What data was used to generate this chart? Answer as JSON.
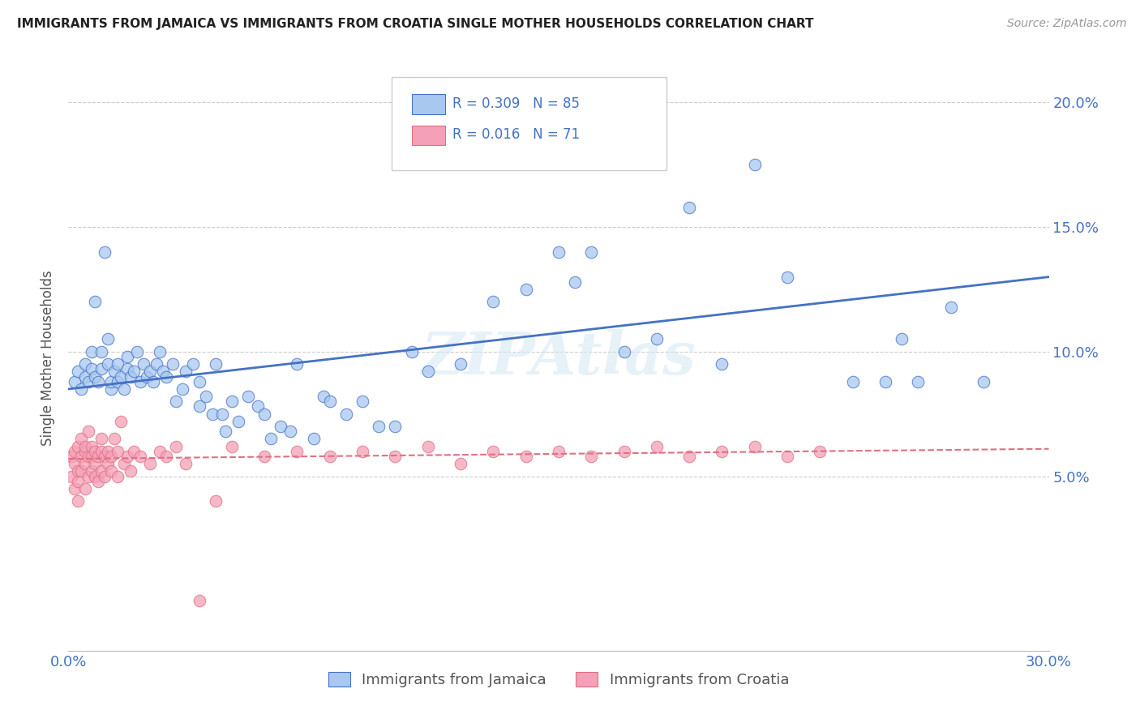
{
  "title": "IMMIGRANTS FROM JAMAICA VS IMMIGRANTS FROM CROATIA SINGLE MOTHER HOUSEHOLDS CORRELATION CHART",
  "source": "Source: ZipAtlas.com",
  "ylabel": "Single Mother Households",
  "x_min": 0.0,
  "x_max": 0.3,
  "y_min": -0.02,
  "y_max": 0.215,
  "x_ticks": [
    0.0,
    0.05,
    0.1,
    0.15,
    0.2,
    0.25,
    0.3
  ],
  "x_tick_labels": [
    "0.0%",
    "",
    "",
    "",
    "",
    "",
    "30.0%"
  ],
  "y_ticks": [
    0.05,
    0.1,
    0.15,
    0.2
  ],
  "y_tick_labels": [
    "5.0%",
    "10.0%",
    "15.0%",
    "20.0%"
  ],
  "legend_jamaica": "Immigrants from Jamaica",
  "legend_croatia": "Immigrants from Croatia",
  "R_jamaica": 0.309,
  "N_jamaica": 85,
  "R_croatia": 0.016,
  "N_croatia": 71,
  "color_jamaica": "#A8C8F0",
  "color_croatia": "#F4A0B8",
  "color_jamaica_line": "#4472C4",
  "color_croatia_line": "#E07080",
  "color_text_blue": "#4472C4",
  "background_color": "#FFFFFF",
  "grid_color": "#CCCCCC",
  "watermark": "ZIPAtlas",
  "jamaica_x": [
    0.002,
    0.003,
    0.004,
    0.005,
    0.005,
    0.006,
    0.007,
    0.007,
    0.008,
    0.008,
    0.009,
    0.01,
    0.01,
    0.011,
    0.012,
    0.012,
    0.013,
    0.013,
    0.014,
    0.015,
    0.015,
    0.016,
    0.017,
    0.018,
    0.018,
    0.019,
    0.02,
    0.021,
    0.022,
    0.023,
    0.024,
    0.025,
    0.026,
    0.027,
    0.028,
    0.029,
    0.03,
    0.032,
    0.033,
    0.035,
    0.036,
    0.038,
    0.04,
    0.04,
    0.042,
    0.044,
    0.045,
    0.047,
    0.048,
    0.05,
    0.052,
    0.055,
    0.058,
    0.06,
    0.062,
    0.065,
    0.068,
    0.07,
    0.075,
    0.078,
    0.08,
    0.085,
    0.09,
    0.095,
    0.1,
    0.105,
    0.11,
    0.12,
    0.13,
    0.14,
    0.15,
    0.155,
    0.16,
    0.17,
    0.18,
    0.19,
    0.2,
    0.21,
    0.22,
    0.24,
    0.25,
    0.255,
    0.26,
    0.27,
    0.28
  ],
  "jamaica_y": [
    0.088,
    0.092,
    0.085,
    0.09,
    0.095,
    0.088,
    0.093,
    0.1,
    0.09,
    0.12,
    0.088,
    0.093,
    0.1,
    0.14,
    0.095,
    0.105,
    0.085,
    0.088,
    0.092,
    0.095,
    0.088,
    0.09,
    0.085,
    0.093,
    0.098,
    0.09,
    0.092,
    0.1,
    0.088,
    0.095,
    0.09,
    0.092,
    0.088,
    0.095,
    0.1,
    0.092,
    0.09,
    0.095,
    0.08,
    0.085,
    0.092,
    0.095,
    0.088,
    0.078,
    0.082,
    0.075,
    0.095,
    0.075,
    0.068,
    0.08,
    0.072,
    0.082,
    0.078,
    0.075,
    0.065,
    0.07,
    0.068,
    0.095,
    0.065,
    0.082,
    0.08,
    0.075,
    0.08,
    0.07,
    0.07,
    0.1,
    0.092,
    0.095,
    0.12,
    0.125,
    0.14,
    0.128,
    0.14,
    0.1,
    0.105,
    0.158,
    0.095,
    0.175,
    0.13,
    0.088,
    0.088,
    0.105,
    0.088,
    0.118,
    0.088
  ],
  "croatia_x": [
    0.001,
    0.001,
    0.002,
    0.002,
    0.002,
    0.003,
    0.003,
    0.003,
    0.003,
    0.004,
    0.004,
    0.004,
    0.005,
    0.005,
    0.005,
    0.005,
    0.006,
    0.006,
    0.006,
    0.007,
    0.007,
    0.007,
    0.008,
    0.008,
    0.008,
    0.009,
    0.009,
    0.01,
    0.01,
    0.01,
    0.011,
    0.011,
    0.012,
    0.012,
    0.013,
    0.013,
    0.014,
    0.015,
    0.015,
    0.016,
    0.017,
    0.018,
    0.019,
    0.02,
    0.022,
    0.025,
    0.028,
    0.03,
    0.033,
    0.036,
    0.04,
    0.045,
    0.05,
    0.06,
    0.07,
    0.08,
    0.09,
    0.1,
    0.11,
    0.12,
    0.13,
    0.14,
    0.15,
    0.16,
    0.17,
    0.18,
    0.19,
    0.2,
    0.21,
    0.22,
    0.23
  ],
  "croatia_y": [
    0.058,
    0.05,
    0.06,
    0.045,
    0.055,
    0.062,
    0.048,
    0.052,
    0.04,
    0.058,
    0.052,
    0.065,
    0.06,
    0.045,
    0.055,
    0.062,
    0.05,
    0.058,
    0.068,
    0.052,
    0.058,
    0.062,
    0.05,
    0.055,
    0.06,
    0.048,
    0.058,
    0.052,
    0.06,
    0.065,
    0.05,
    0.058,
    0.055,
    0.06,
    0.052,
    0.058,
    0.065,
    0.05,
    0.06,
    0.072,
    0.055,
    0.058,
    0.052,
    0.06,
    0.058,
    0.055,
    0.06,
    0.058,
    0.062,
    0.055,
    0.0,
    0.04,
    0.062,
    0.058,
    0.06,
    0.058,
    0.06,
    0.058,
    0.062,
    0.055,
    0.06,
    0.058,
    0.06,
    0.058,
    0.06,
    0.062,
    0.058,
    0.06,
    0.062,
    0.058,
    0.06
  ]
}
